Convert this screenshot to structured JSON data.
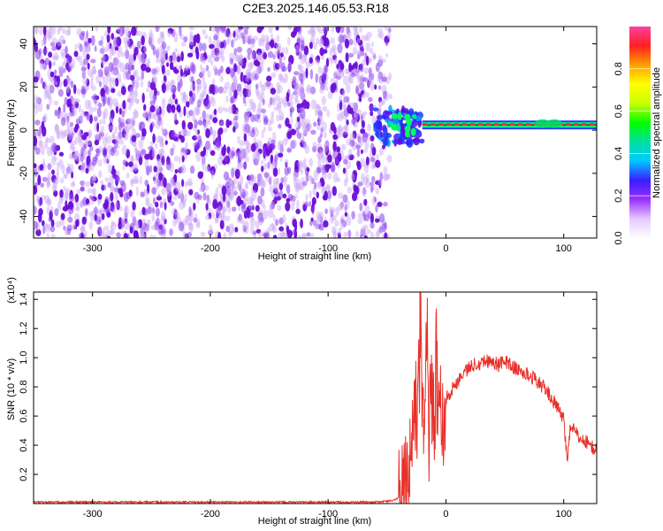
{
  "title": "C2E3.2025.146.05.53.R18",
  "chart_data": [
    {
      "type": "heatmap",
      "xlabel": "Height of straight line (km)",
      "ylabel": "Frequency (Hz)",
      "xlim": [
        -350,
        128
      ],
      "ylim": [
        -50,
        48
      ],
      "xticks": [
        -300,
        -200,
        -100,
        0,
        100
      ],
      "yticks": [
        -40,
        -20,
        0,
        20,
        40
      ],
      "noise_region": {
        "x": [
          -350,
          -52
        ],
        "y": [
          -50,
          48
        ],
        "color": "#6a0ed6"
      },
      "carrier_line": {
        "x": [
          -20,
          128
        ],
        "y": 2,
        "color": "#e8372c"
      },
      "colorbar": {
        "label": "Normalized spectral amplitude",
        "range": [
          0.0,
          1.0
        ],
        "ticks": [
          "0.0",
          "0.2",
          "0.4",
          "0.6",
          "0.8"
        ],
        "colors": [
          "#ffffff",
          "#e6c8ff",
          "#9b30ff",
          "#3b1cff",
          "#00c8ff",
          "#00e0a0",
          "#00ff00",
          "#c8ff00",
          "#ffff00",
          "#ffa000",
          "#ff2020",
          "#ff40a0"
        ]
      }
    },
    {
      "type": "line",
      "xlabel": "Height of straight line (km)",
      "ylabel": "SNR (10 * v/v)",
      "ylabel_multiplier": "(x10⁴)",
      "xlim": [
        -350,
        128
      ],
      "ylim": [
        0,
        1.45
      ],
      "xticks": [
        -300,
        -200,
        -100,
        0,
        100
      ],
      "yticks": [
        "0.2",
        "0.4",
        "0.6",
        "0.8",
        "1.0",
        "1.2",
        "1.4"
      ],
      "series": [
        {
          "color": "#e8302a",
          "x": [
            -350,
            -300,
            -250,
            -200,
            -150,
            -100,
            -60,
            -45,
            -38,
            -34,
            -30,
            -28,
            -26,
            -24,
            -22,
            -20,
            -18,
            -16,
            -14,
            -12,
            -10,
            -8,
            -6,
            -4,
            -2,
            0,
            5,
            10,
            15,
            20,
            25,
            30,
            35,
            40,
            45,
            50,
            55,
            60,
            65,
            70,
            75,
            80,
            85,
            90,
            95,
            100,
            103,
            106,
            110,
            115,
            120,
            125,
            128
          ],
          "y": [
            0.01,
            0.01,
            0.01,
            0.01,
            0.01,
            0.01,
            0.01,
            0.02,
            0.05,
            0.15,
            0.3,
            0.6,
            0.75,
            0.4,
            1.45,
            0.65,
            0.5,
            1.2,
            0.55,
            0.9,
            0.6,
            1.05,
            0.5,
            0.7,
            0.6,
            0.72,
            0.78,
            0.84,
            0.9,
            0.93,
            0.96,
            0.97,
            0.98,
            0.97,
            0.95,
            0.98,
            0.95,
            0.92,
            0.9,
            0.88,
            0.86,
            0.82,
            0.78,
            0.72,
            0.65,
            0.58,
            0.3,
            0.55,
            0.48,
            0.44,
            0.42,
            0.38,
            0.37
          ]
        }
      ]
    }
  ]
}
